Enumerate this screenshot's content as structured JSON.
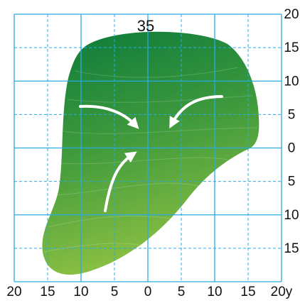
{
  "depth_label": "35",
  "right_labels": [
    "20",
    "15",
    "10",
    "5",
    "0",
    "5",
    "10",
    "15"
  ],
  "bottom_labels": [
    "20",
    "15",
    "10",
    "5",
    "0",
    "5",
    "10",
    "15",
    "20y"
  ]
}
